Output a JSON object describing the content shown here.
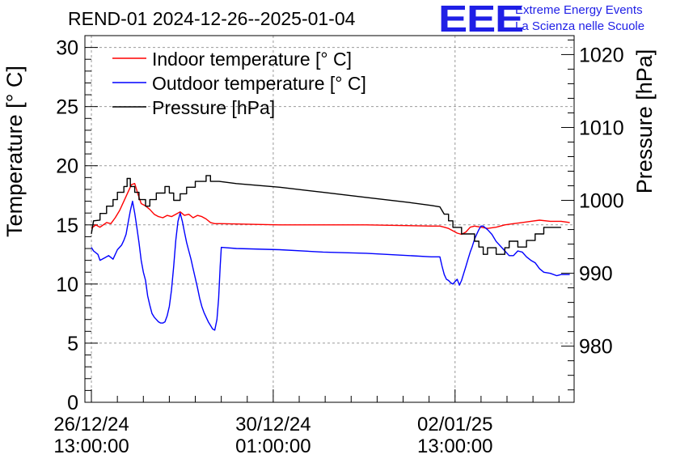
{
  "title": "REND-01 2024-12-26--2025-01-04",
  "logo": {
    "mark": "EEE",
    "line1": "Extreme Energy Events",
    "line2": "La Scienza nelle Scuole",
    "color": "#1f1fe6"
  },
  "chart_data": {
    "type": "line",
    "title": "REND-01 2024-12-26--2025-01-04",
    "y_left": {
      "label": "Temperature [° C]",
      "range": [
        0,
        31
      ],
      "ticks": [
        0,
        5,
        10,
        15,
        20,
        25,
        30
      ]
    },
    "y_right": {
      "label": "Pressure [hPa]",
      "range": [
        972.3,
        1022.6
      ],
      "ticks": [
        980,
        990,
        1000,
        1010,
        1020
      ]
    },
    "x": {
      "unit": "hours since 26/12/24 00:00",
      "range": [
        10,
        236
      ],
      "ticks": [
        {
          "h": 13,
          "date": "26/12/24",
          "time": "13:00:00"
        },
        {
          "h": 97,
          "date": "30/12/24",
          "time": "01:00:00"
        },
        {
          "h": 181,
          "date": "02/01/25",
          "time": "13:00:00"
        }
      ]
    },
    "grid": true,
    "legend_position": "top-left",
    "series": [
      {
        "name": "Indoor temperature [° C]",
        "color": "#ff0000",
        "axis": "left",
        "points": [
          [
            13,
            14.7
          ],
          [
            15,
            15.0
          ],
          [
            17,
            14.8
          ],
          [
            20,
            15.2
          ],
          [
            22,
            15.1
          ],
          [
            24,
            15.6
          ],
          [
            26,
            16.2
          ],
          [
            28,
            17.0
          ],
          [
            30,
            17.8
          ],
          [
            31.5,
            18.4
          ],
          [
            33,
            18.5
          ],
          [
            34.5,
            17.6
          ],
          [
            36,
            16.8
          ],
          [
            38,
            16.6
          ],
          [
            40,
            16.3
          ],
          [
            42,
            15.9
          ],
          [
            44,
            15.7
          ],
          [
            46,
            15.6
          ],
          [
            48,
            15.8
          ],
          [
            50,
            15.7
          ],
          [
            52,
            15.9
          ],
          [
            54,
            16.1
          ],
          [
            56,
            15.8
          ],
          [
            58,
            15.9
          ],
          [
            60,
            15.6
          ],
          [
            62,
            15.8
          ],
          [
            64,
            15.7
          ],
          [
            66,
            15.5
          ],
          [
            68,
            15.2
          ],
          [
            70,
            15.1
          ],
          [
            73,
            15.1
          ],
          [
            100,
            15.0
          ],
          [
            140,
            15.0
          ],
          [
            170,
            14.9
          ],
          [
            174,
            14.9
          ],
          [
            176,
            14.8
          ],
          [
            178,
            14.7
          ],
          [
            180,
            14.5
          ],
          [
            182,
            14.3
          ],
          [
            184,
            14.2
          ],
          [
            186,
            14.4
          ],
          [
            188,
            14.8
          ],
          [
            190,
            14.9
          ],
          [
            193,
            14.8
          ],
          [
            196,
            14.7
          ],
          [
            200,
            14.8
          ],
          [
            204,
            15.0
          ],
          [
            208,
            15.1
          ],
          [
            212,
            15.2
          ],
          [
            216,
            15.3
          ],
          [
            220,
            15.4
          ],
          [
            225,
            15.3
          ],
          [
            230,
            15.3
          ],
          [
            234,
            15.2
          ]
        ]
      },
      {
        "name": "Outdoor temperature [° C]",
        "color": "#0000ff",
        "axis": "left",
        "points": [
          [
            13,
            13.1
          ],
          [
            14,
            12.8
          ],
          [
            16,
            12.5
          ],
          [
            17,
            12.0
          ],
          [
            19,
            12.2
          ],
          [
            21,
            12.4
          ],
          [
            23,
            12.1
          ],
          [
            25,
            12.9
          ],
          [
            27,
            13.3
          ],
          [
            28,
            13.7
          ],
          [
            29,
            14.2
          ],
          [
            30,
            15.2
          ],
          [
            31,
            16.2
          ],
          [
            32,
            17.0
          ],
          [
            33,
            16.0
          ],
          [
            34,
            14.8
          ],
          [
            35,
            13.5
          ],
          [
            36,
            12.0
          ],
          [
            37,
            11.0
          ],
          [
            38,
            10.3
          ],
          [
            39,
            9.0
          ],
          [
            40,
            8.2
          ],
          [
            41,
            7.5
          ],
          [
            42,
            7.2
          ],
          [
            43,
            7.0
          ],
          [
            44,
            6.8
          ],
          [
            45,
            6.7
          ],
          [
            46,
            6.7
          ],
          [
            47,
            6.8
          ],
          [
            48,
            7.3
          ],
          [
            49,
            8.1
          ],
          [
            50,
            9.5
          ],
          [
            51,
            11.5
          ],
          [
            52,
            13.7
          ],
          [
            53,
            15.3
          ],
          [
            54,
            16.0
          ],
          [
            55,
            15.3
          ],
          [
            56,
            14.4
          ],
          [
            57,
            13.5
          ],
          [
            58,
            12.8
          ],
          [
            59,
            12.1
          ],
          [
            60,
            11.3
          ],
          [
            61,
            10.5
          ],
          [
            62,
            9.7
          ],
          [
            63,
            8.8
          ],
          [
            64,
            8.1
          ],
          [
            65,
            7.6
          ],
          [
            66,
            7.2
          ],
          [
            67,
            6.8
          ],
          [
            68,
            6.5
          ],
          [
            69,
            6.2
          ],
          [
            70,
            6.1
          ],
          [
            71,
            7.0
          ],
          [
            71.8,
            8.8
          ],
          [
            72.5,
            11.5
          ],
          [
            73,
            13.1
          ],
          [
            80,
            13.0
          ],
          [
            100,
            12.9
          ],
          [
            120,
            12.7
          ],
          [
            140,
            12.6
          ],
          [
            160,
            12.4
          ],
          [
            170,
            12.3
          ],
          [
            174,
            12.3
          ],
          [
            175,
            11.5
          ],
          [
            176,
            10.8
          ],
          [
            177,
            10.4
          ],
          [
            178,
            10.3
          ],
          [
            179,
            10.1
          ],
          [
            180,
            10.0
          ],
          [
            181,
            10.2
          ],
          [
            182,
            10.4
          ],
          [
            183,
            9.9
          ],
          [
            184,
            10.3
          ],
          [
            185,
            10.9
          ],
          [
            186,
            11.5
          ],
          [
            187,
            12.1
          ],
          [
            188,
            12.7
          ],
          [
            189,
            13.2
          ],
          [
            190,
            13.8
          ],
          [
            191,
            14.2
          ],
          [
            192,
            14.6
          ],
          [
            193,
            14.9
          ],
          [
            194,
            14.9
          ],
          [
            196,
            14.6
          ],
          [
            198,
            14.2
          ],
          [
            200,
            13.6
          ],
          [
            202,
            13.2
          ],
          [
            204,
            12.8
          ],
          [
            206,
            12.4
          ],
          [
            208,
            12.4
          ],
          [
            210,
            12.8
          ],
          [
            212,
            12.7
          ],
          [
            214,
            12.3
          ],
          [
            216,
            12.0
          ],
          [
            218,
            11.8
          ],
          [
            220,
            11.3
          ],
          [
            222,
            11.0
          ],
          [
            225,
            10.9
          ],
          [
            228,
            10.7
          ],
          [
            230,
            10.8
          ],
          [
            234,
            10.8
          ]
        ]
      },
      {
        "name": "Pressure [hPa]",
        "color": "#000000",
        "axis": "right",
        "points": [
          [
            13,
            995.4
          ],
          [
            14,
            997.2
          ],
          [
            17,
            997.3
          ],
          [
            17,
            998.2
          ],
          [
            20,
            998.2
          ],
          [
            20,
            999.2
          ],
          [
            23,
            999.2
          ],
          [
            23,
            1000.1
          ],
          [
            25,
            1000.1
          ],
          [
            25,
            1001.1
          ],
          [
            28,
            1001.1
          ],
          [
            28,
            1001.9
          ],
          [
            29.5,
            1001.9
          ],
          [
            29.5,
            1003.0
          ],
          [
            31,
            1003.0
          ],
          [
            31,
            1001.9
          ],
          [
            33,
            1001.9
          ],
          [
            33,
            1001.1
          ],
          [
            35,
            1001.1
          ],
          [
            35,
            1000.1
          ],
          [
            38,
            1000.1
          ],
          [
            38,
            999.2
          ],
          [
            40,
            999.2
          ],
          [
            40,
            1000.1
          ],
          [
            43,
            1000.1
          ],
          [
            43,
            1001.0
          ],
          [
            47,
            1001.0
          ],
          [
            47,
            1001.9
          ],
          [
            49,
            1001.9
          ],
          [
            49,
            1001.0
          ],
          [
            51,
            1001.0
          ],
          [
            51,
            1000.0
          ],
          [
            54,
            1000.0
          ],
          [
            54,
            1000.9
          ],
          [
            57,
            1000.9
          ],
          [
            57,
            1001.8
          ],
          [
            61,
            1001.8
          ],
          [
            61,
            1002.6
          ],
          [
            66,
            1002.6
          ],
          [
            66,
            1003.4
          ],
          [
            68,
            1003.4
          ],
          [
            68,
            1002.6
          ],
          [
            72,
            1002.6
          ],
          [
            80,
            1002.3
          ],
          [
            100,
            1001.8
          ],
          [
            120,
            1001.1
          ],
          [
            140,
            1000.4
          ],
          [
            160,
            999.7
          ],
          [
            170,
            999.3
          ],
          [
            174,
            999.1
          ],
          [
            176,
            998.1
          ],
          [
            178,
            998.1
          ],
          [
            178,
            997.2
          ],
          [
            180,
            997.2
          ],
          [
            180,
            996.3
          ],
          [
            184,
            996.3
          ],
          [
            184,
            995.4
          ],
          [
            190,
            995.4
          ],
          [
            190,
            994.4
          ],
          [
            192,
            994.4
          ],
          [
            192,
            993.6
          ],
          [
            194,
            993.6
          ],
          [
            194,
            992.6
          ],
          [
            196,
            992.6
          ],
          [
            196,
            993.5
          ],
          [
            200,
            993.5
          ],
          [
            200,
            992.6
          ],
          [
            204,
            992.6
          ],
          [
            204,
            993.5
          ],
          [
            206,
            993.5
          ],
          [
            206,
            994.4
          ],
          [
            210,
            994.4
          ],
          [
            210,
            993.6
          ],
          [
            214,
            993.6
          ],
          [
            214,
            994.5
          ],
          [
            218,
            994.5
          ],
          [
            218,
            995.4
          ],
          [
            222,
            995.4
          ],
          [
            222,
            996.3
          ],
          [
            230,
            996.3
          ]
        ]
      }
    ]
  }
}
